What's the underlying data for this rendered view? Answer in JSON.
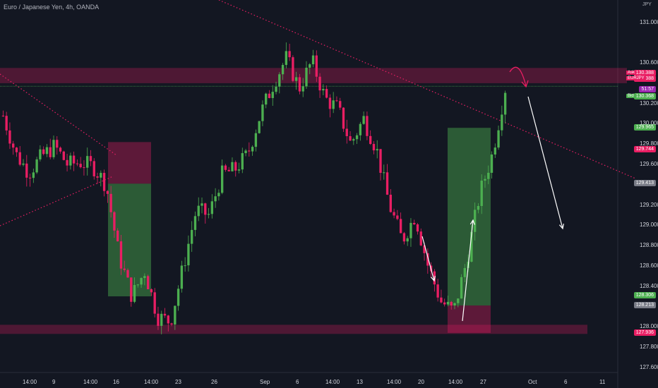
{
  "header": {
    "title": "Euro / Japanese Yen, 4h, OANDA",
    "currency": "JPY"
  },
  "price_scale": {
    "ticks": [
      "131.000",
      "130.600",
      "130.200",
      "130.000",
      "129.800",
      "129.600",
      "129.200",
      "129.000",
      "128.800",
      "128.600",
      "128.400",
      "128.000",
      "127.800",
      "127.600"
    ],
    "tags": [
      {
        "label": "Ask",
        "value": "130.388",
        "color": "#e91e63"
      },
      {
        "label": "EURJPY",
        "value": "130.388",
        "color": "#e91e63"
      },
      {
        "label": "",
        "value": "51:57",
        "color": "#9c27b0"
      },
      {
        "label": "Bid",
        "value": "130.368",
        "color": "#4caf50"
      },
      {
        "label": "",
        "value": "129.965",
        "color": "#4caf50"
      },
      {
        "label": "",
        "value": "129.744",
        "color": "#e91e63"
      },
      {
        "label": "",
        "value": "129.413",
        "color": "#787b86"
      },
      {
        "label": "",
        "value": "128.306",
        "color": "#4caf50"
      },
      {
        "label": "",
        "value": "128.213",
        "color": "#787b86"
      },
      {
        "label": "",
        "value": "127.936",
        "color": "#e91e63"
      }
    ]
  },
  "time_axis": {
    "labels": [
      "14:00",
      "9",
      "14:00",
      "16",
      "14:00",
      "23",
      "26",
      "Sep",
      "6",
      "14:00",
      "13",
      "14:00",
      "20",
      "14:00",
      "27",
      "Oct",
      "6",
      "11"
    ]
  },
  "colors": {
    "up": "#4caf50",
    "down": "#e91e63",
    "zone": "#e91e63",
    "background": "#131722"
  },
  "chart_data": {
    "type": "candlestick",
    "symbol": "EURJPY",
    "timeframe": "4h",
    "ylim": [
      127.55,
      131.15
    ],
    "grid": false,
    "ohlc": [],
    "series_description_close_path": [
      {
        "x": 0,
        "close": 130.08
      },
      {
        "x": 1,
        "close": 129.7
      },
      {
        "x": 2,
        "close": 129.52
      },
      {
        "x": 3,
        "close": 129.68
      },
      {
        "x": 4,
        "close": 129.78
      },
      {
        "x": 5,
        "close": 129.6
      },
      {
        "x": 6,
        "close": 129.62
      },
      {
        "x": 7,
        "close": 129.58
      },
      {
        "x": 8,
        "close": 129.4
      },
      {
        "x": 9,
        "close": 128.7
      },
      {
        "x": 10,
        "close": 128.3
      },
      {
        "x": 11,
        "close": 128.55
      },
      {
        "x": 12,
        "close": 128.1
      },
      {
        "x": 13,
        "close": 128.05
      },
      {
        "x": 14,
        "close": 128.6
      },
      {
        "x": 15,
        "close": 129.15
      },
      {
        "x": 16,
        "close": 129.1
      },
      {
        "x": 17,
        "close": 129.5
      },
      {
        "x": 18,
        "close": 129.55
      },
      {
        "x": 19,
        "close": 129.7
      },
      {
        "x": 20,
        "close": 130.1
      },
      {
        "x": 21,
        "close": 130.4
      },
      {
        "x": 22,
        "close": 130.65
      },
      {
        "x": 23,
        "close": 130.35
      },
      {
        "x": 24,
        "close": 130.62
      },
      {
        "x": 25,
        "close": 130.25
      },
      {
        "x": 26,
        "close": 130.15
      },
      {
        "x": 27,
        "close": 129.8
      },
      {
        "x": 28,
        "close": 130.05
      },
      {
        "x": 29,
        "close": 129.75
      },
      {
        "x": 30,
        "close": 129.2
      },
      {
        "x": 31,
        "close": 128.85
      },
      {
        "x": 32,
        "close": 129.1
      },
      {
        "x": 33,
        "close": 128.6
      },
      {
        "x": 34,
        "close": 128.25
      },
      {
        "x": 35,
        "close": 128.15
      },
      {
        "x": 36,
        "close": 128.65
      },
      {
        "x": 37,
        "close": 129.3
      },
      {
        "x": 38,
        "close": 129.7
      },
      {
        "x": 39,
        "close": 130.35
      }
    ]
  }
}
